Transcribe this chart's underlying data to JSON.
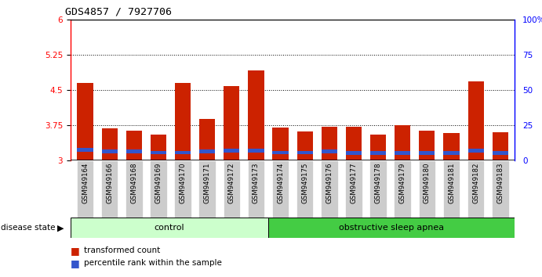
{
  "title": "GDS4857 / 7927706",
  "samples": [
    "GSM949164",
    "GSM949166",
    "GSM949168",
    "GSM949169",
    "GSM949170",
    "GSM949171",
    "GSM949172",
    "GSM949173",
    "GSM949174",
    "GSM949175",
    "GSM949176",
    "GSM949177",
    "GSM949178",
    "GSM949179",
    "GSM949180",
    "GSM949181",
    "GSM949182",
    "GSM949183"
  ],
  "red_values": [
    4.65,
    3.68,
    3.63,
    3.55,
    4.65,
    3.88,
    4.58,
    4.92,
    3.7,
    3.62,
    3.72,
    3.72,
    3.55,
    3.75,
    3.63,
    3.58,
    4.68,
    3.6
  ],
  "blue_values": [
    0.08,
    0.08,
    0.08,
    0.08,
    0.08,
    0.08,
    0.08,
    0.08,
    0.08,
    0.08,
    0.08,
    0.08,
    0.08,
    0.08,
    0.08,
    0.08,
    0.08,
    0.08
  ],
  "blue_positions": [
    3.19,
    3.15,
    3.15,
    3.13,
    3.13,
    3.15,
    3.17,
    3.17,
    3.13,
    3.13,
    3.16,
    3.12,
    3.12,
    3.12,
    3.12,
    3.12,
    3.17,
    3.12
  ],
  "control_count": 8,
  "osa_count": 10,
  "ylim_left": [
    3.0,
    6.0
  ],
  "ylim_right": [
    0,
    100
  ],
  "yticks_left": [
    3.0,
    3.75,
    4.5,
    5.25,
    6.0
  ],
  "yticks_right": [
    0,
    25,
    50,
    75,
    100
  ],
  "ytick_labels_left": [
    "3",
    "3.75",
    "4.5",
    "5.25",
    "6"
  ],
  "ytick_labels_right": [
    "0",
    "25",
    "50",
    "75",
    "100%"
  ],
  "grid_lines": [
    3.75,
    4.5,
    5.25
  ],
  "bar_color": "#cc2200",
  "blue_color": "#3355cc",
  "control_bg": "#ccffcc",
  "osa_bg": "#44cc44",
  "label_bg": "#cccccc",
  "bar_width": 0.65
}
